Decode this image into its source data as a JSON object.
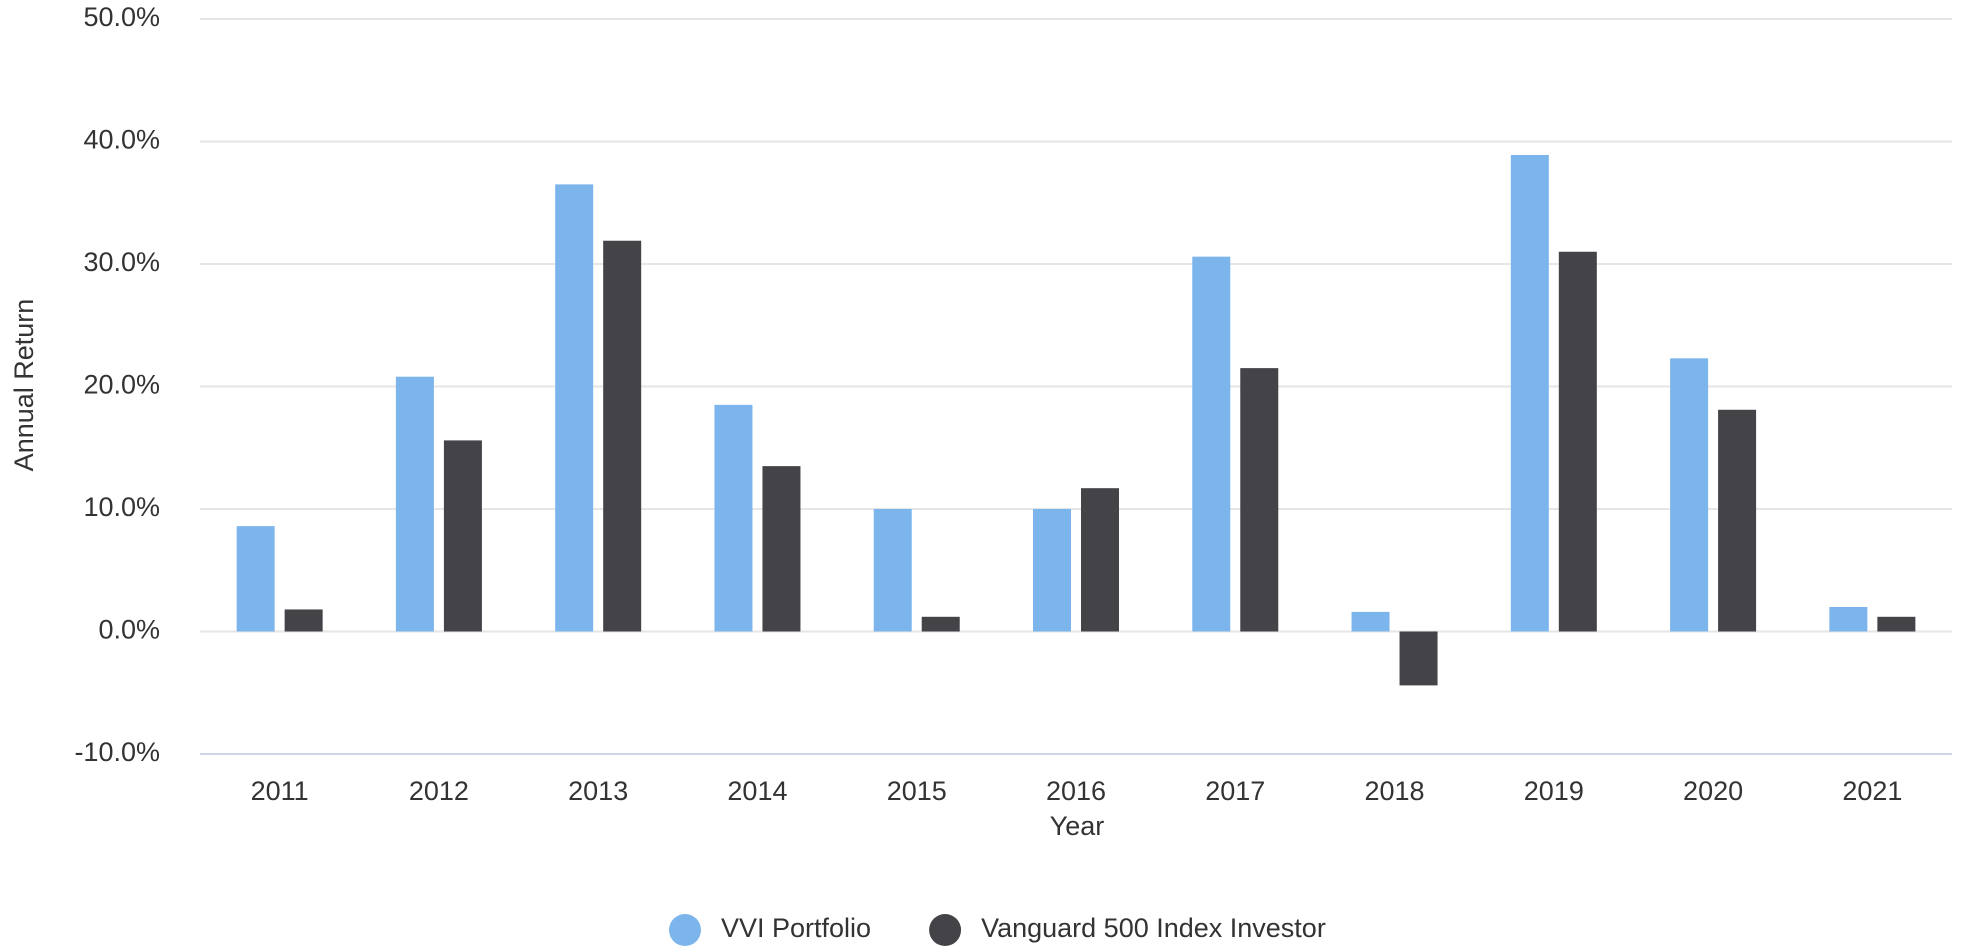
{
  "chart_data": {
    "type": "bar",
    "x_label": "Year",
    "y_label": "Annual Return",
    "categories": [
      "2011",
      "2012",
      "2013",
      "2014",
      "2015",
      "2016",
      "2017",
      "2018",
      "2019",
      "2020",
      "2021"
    ],
    "series": [
      {
        "name": "VVI Portfolio",
        "color": "#7cb5ec",
        "values": [
          8.6,
          20.8,
          36.5,
          18.5,
          10.0,
          10.0,
          30.6,
          1.6,
          38.9,
          22.3,
          2.0
        ]
      },
      {
        "name": "Vanguard 500 Index Investor",
        "color": "#434348",
        "values": [
          1.8,
          15.6,
          31.9,
          13.5,
          1.2,
          11.7,
          21.5,
          -4.4,
          31.0,
          18.1,
          1.2
        ]
      }
    ],
    "ylim": [
      -10,
      50
    ],
    "yticks": [
      {
        "value": -10,
        "label": "-10.0%"
      },
      {
        "value": 0,
        "label": "0.0%"
      },
      {
        "value": 10,
        "label": "10.0%"
      },
      {
        "value": 20,
        "label": "20.0%"
      },
      {
        "value": 30,
        "label": "30.0%"
      },
      {
        "value": 40,
        "label": "40.0%"
      },
      {
        "value": 50,
        "label": "50.0%"
      }
    ],
    "grid": true,
    "legend": "bottom"
  }
}
